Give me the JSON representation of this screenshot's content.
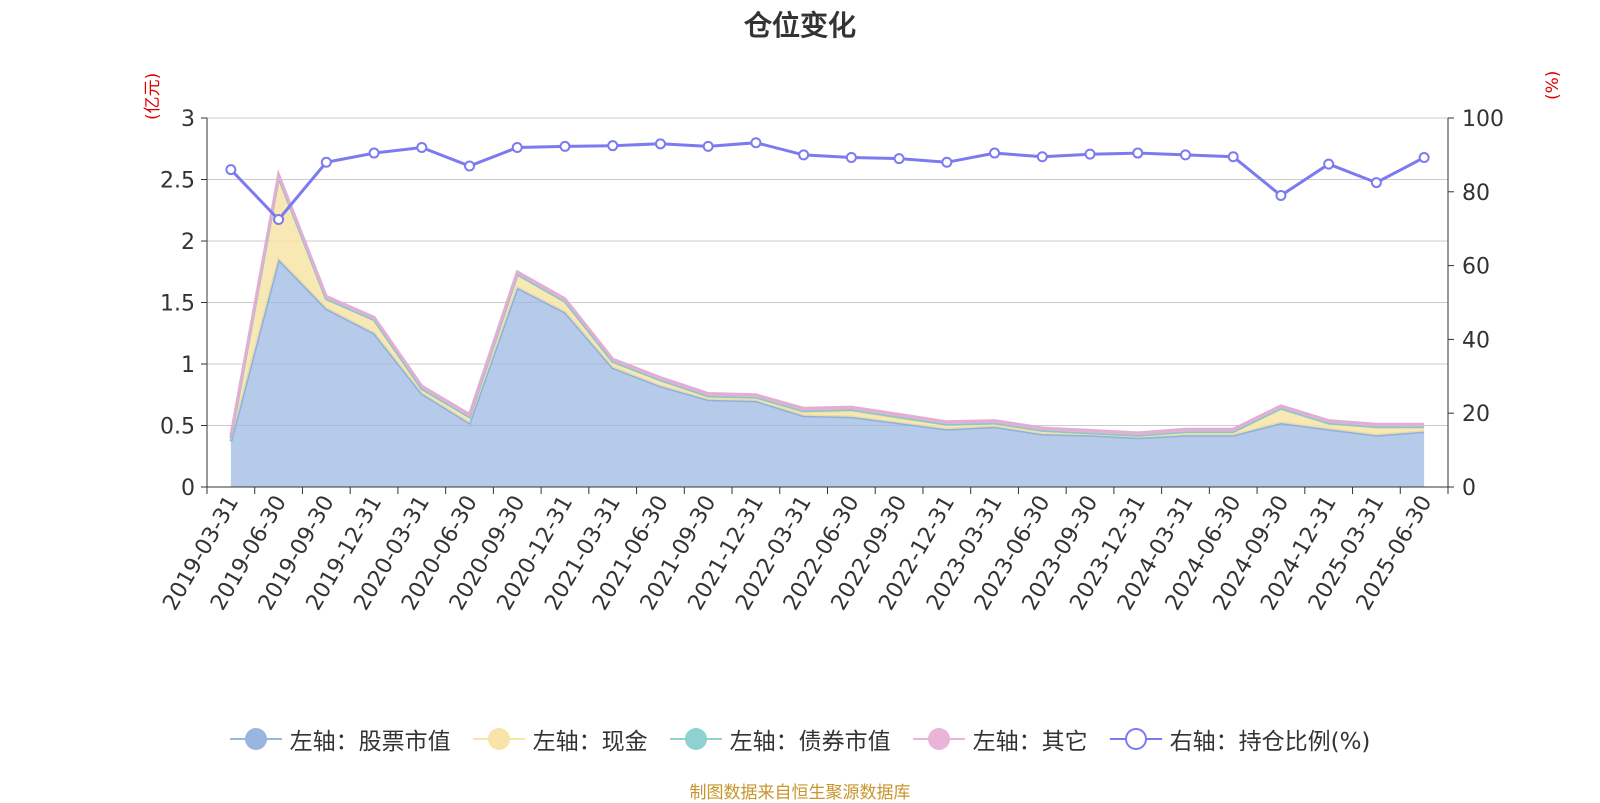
{
  "title": "仓位变化",
  "left_unit": "(亿元)",
  "right_unit": "(%)",
  "source": "制图数据来自恒生聚源数据库",
  "chart_data": {
    "type": "area",
    "categories": [
      "2019-03-31",
      "2019-06-30",
      "2019-09-30",
      "2019-12-31",
      "2020-03-31",
      "2020-06-30",
      "2020-09-30",
      "2020-12-31",
      "2021-03-31",
      "2021-06-30",
      "2021-09-30",
      "2021-12-31",
      "2022-03-31",
      "2022-06-30",
      "2022-09-30",
      "2022-12-31",
      "2023-03-31",
      "2023-06-30",
      "2023-09-30",
      "2023-12-31",
      "2024-03-31",
      "2024-06-30",
      "2024-09-30",
      "2024-12-31",
      "2025-03-31",
      "2025-06-30"
    ],
    "y_left": {
      "ticks": [
        "0",
        "0.5",
        "1",
        "1.5",
        "2",
        "2.5",
        "3"
      ],
      "min": 0,
      "max": 3
    },
    "y_right": {
      "ticks": [
        "0",
        "20",
        "40",
        "60",
        "80",
        "100"
      ],
      "min": 0,
      "max": 100
    },
    "grid": true,
    "legend_position": "bottom",
    "series": [
      {
        "name": "左轴：股票市值",
        "axis": "left",
        "color": "#9ab6e0",
        "values": [
          0.37,
          1.85,
          1.45,
          1.25,
          0.76,
          0.52,
          1.62,
          1.42,
          0.97,
          0.82,
          0.71,
          0.7,
          0.58,
          0.57,
          0.52,
          0.47,
          0.49,
          0.43,
          0.42,
          0.4,
          0.42,
          0.42,
          0.52,
          0.47,
          0.42,
          0.45
        ]
      },
      {
        "name": "左轴：现金",
        "axis": "left",
        "color": "#f7e4a6",
        "values": [
          0.03,
          0.67,
          0.08,
          0.11,
          0.04,
          0.05,
          0.11,
          0.09,
          0.05,
          0.05,
          0.03,
          0.03,
          0.03,
          0.05,
          0.04,
          0.04,
          0.03,
          0.03,
          0.02,
          0.02,
          0.03,
          0.03,
          0.12,
          0.05,
          0.07,
          0.04
        ]
      },
      {
        "name": "左轴：债券市值",
        "axis": "left",
        "color": "#8ed1d1",
        "values": [
          0,
          0,
          0,
          0,
          0,
          0,
          0,
          0,
          0,
          0,
          0,
          0,
          0.01,
          0.01,
          0.01,
          0,
          0,
          0,
          0,
          0,
          0,
          0,
          0,
          0,
          0,
          0
        ]
      },
      {
        "name": "左轴：其它",
        "axis": "left",
        "color": "#e8b4d8",
        "values": [
          0.02,
          0.02,
          0.02,
          0.02,
          0.02,
          0.02,
          0.02,
          0.02,
          0.02,
          0.02,
          0.02,
          0.02,
          0.02,
          0.02,
          0.02,
          0.02,
          0.02,
          0.02,
          0.02,
          0.02,
          0.02,
          0.02,
          0.02,
          0.02,
          0.02,
          0.02
        ]
      },
      {
        "name": "右轴：持仓比例(%)",
        "axis": "right",
        "color": "#7b7bef",
        "values": [
          86,
          72.5,
          88,
          90.5,
          92,
          87,
          92,
          92.3,
          92.5,
          93,
          92.3,
          93.3,
          90,
          89.3,
          89,
          88,
          90.5,
          89.5,
          90.2,
          90.5,
          90,
          89.5,
          79,
          87.5,
          82.5,
          89.3
        ]
      }
    ]
  }
}
